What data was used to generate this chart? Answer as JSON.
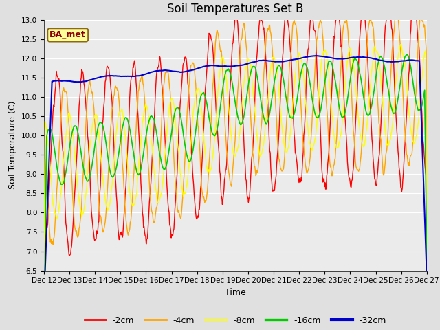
{
  "title": "Soil Temperatures Set B",
  "xlabel": "Time",
  "ylabel": "Soil Temperature (C)",
  "ylim": [
    6.5,
    13.0
  ],
  "yticks": [
    6.5,
    7.0,
    7.5,
    8.0,
    8.5,
    9.0,
    9.5,
    10.0,
    10.5,
    11.0,
    11.5,
    12.0,
    12.5,
    13.0
  ],
  "annotation": "BA_met",
  "annotation_color": "#8B0000",
  "annotation_bg": "#FFFF99",
  "annotation_edge": "#8B6914",
  "series_colors": [
    "#FF0000",
    "#FFA500",
    "#FFFF00",
    "#00CC00",
    "#0000CC"
  ],
  "series_labels": [
    "-2cm",
    "-4cm",
    "-8cm",
    "-16cm",
    "-32cm"
  ],
  "series_linewidths": [
    1.0,
    1.0,
    1.0,
    1.2,
    1.5
  ],
  "bg_color": "#E0E0E0",
  "plot_bg": "#EBEBEB",
  "grid_color": "#FFFFFF",
  "title_fontsize": 12,
  "axis_label_fontsize": 9,
  "tick_fontsize": 7.5,
  "legend_fontsize": 9
}
